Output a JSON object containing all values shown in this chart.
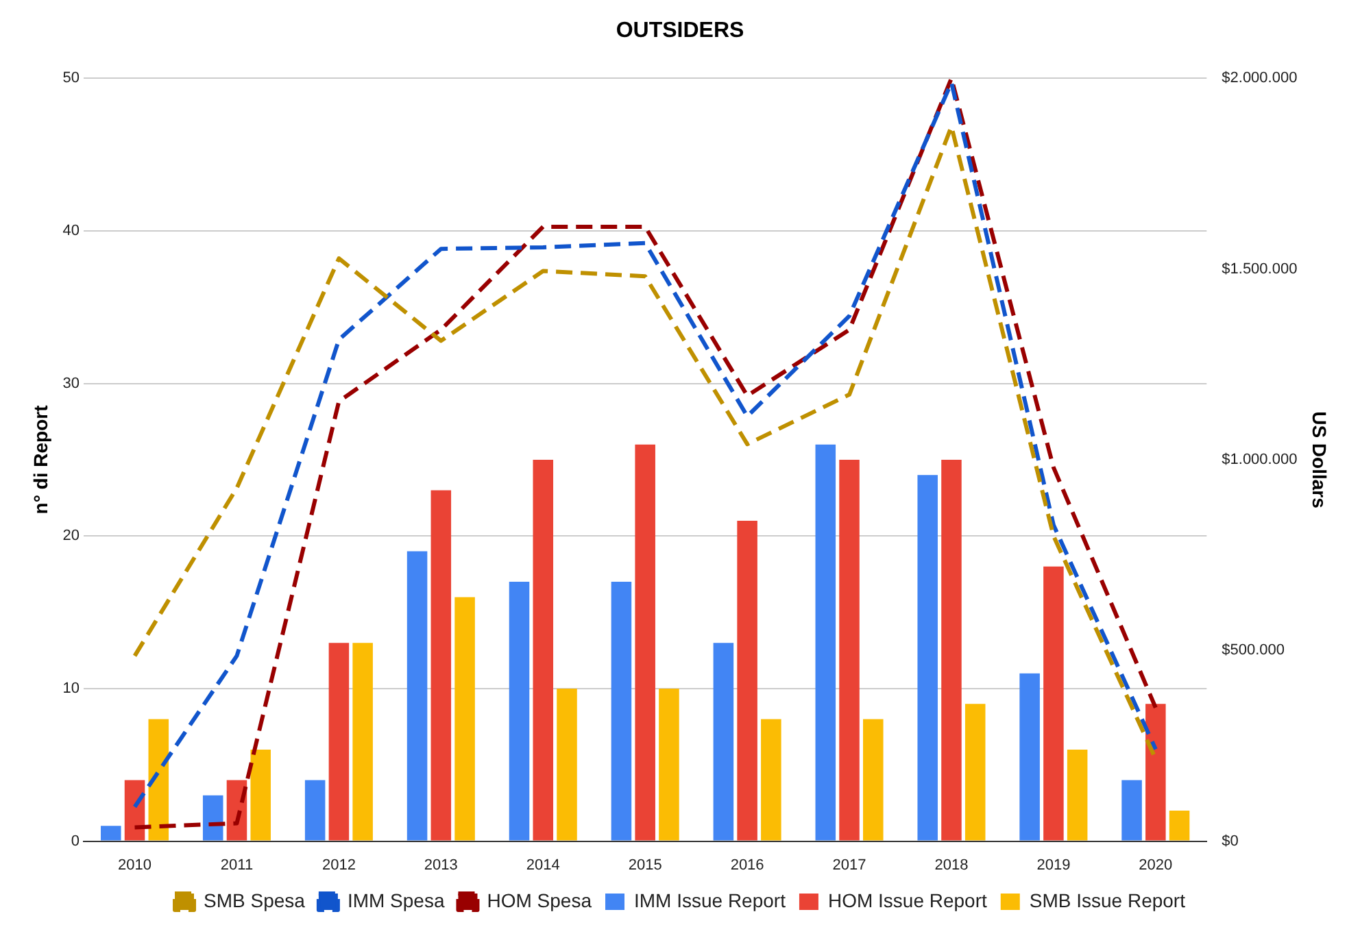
{
  "chart_data": {
    "type": "bar",
    "title": "OUTSIDERS",
    "ylabel": "n° di Report",
    "y2label": "US Dollars",
    "categories": [
      "2010",
      "2011",
      "2012",
      "2013",
      "2014",
      "2015",
      "2016",
      "2017",
      "2018",
      "2019",
      "2020"
    ],
    "series": [
      {
        "name": "IMM Issue Report",
        "color": "#4285f4",
        "values": [
          1,
          3,
          4,
          19,
          17,
          17,
          13,
          26,
          24,
          11,
          4
        ]
      },
      {
        "name": "HOM Issue Report",
        "color": "#ea4335",
        "values": [
          4,
          4,
          13,
          23,
          25,
          26,
          21,
          25,
          25,
          18,
          9
        ]
      },
      {
        "name": "SMB Issue Report",
        "color": "#fbbc04",
        "values": [
          8,
          6,
          13,
          16,
          10,
          10,
          8,
          8,
          9,
          6,
          2
        ]
      },
      {
        "name": "SMB Spesa",
        "type": "line",
        "axis": "y2",
        "line_style": "dashed",
        "color": "#bf9000",
        "values": [
          486000,
          926000,
          1528000,
          1312000,
          1495000,
          1481000,
          1041000,
          1171000,
          1874000,
          800000,
          216000
        ]
      },
      {
        "name": "IMM Spesa",
        "type": "line",
        "axis": "y2",
        "line_style": "dashed",
        "color": "#1155cc",
        "values": [
          90000,
          486000,
          1315000,
          1553000,
          1557000,
          1568000,
          1114000,
          1377000,
          1989000,
          829000,
          241000
        ]
      },
      {
        "name": "HOM Spesa",
        "type": "line",
        "axis": "y2",
        "line_style": "dashed",
        "color": "#990000",
        "values": [
          36000,
          47000,
          1153000,
          1341000,
          1611000,
          1611000,
          1168000,
          1341000,
          2000000,
          980000,
          350000
        ]
      }
    ],
    "ylim": [
      0,
      50
    ],
    "yticks": [
      0,
      10,
      20,
      30,
      40,
      50
    ],
    "y2lim": [
      0,
      2000000
    ],
    "y2ticks": [
      {
        "value": 0,
        "label": "$0"
      },
      {
        "value": 500000,
        "label": "$500.000"
      },
      {
        "value": 1000000,
        "label": "$1.000.000"
      },
      {
        "value": 1500000,
        "label": "$1.500.000"
      },
      {
        "value": 2000000,
        "label": "$2.000.000"
      }
    ],
    "grid": "y",
    "legend": "bottom",
    "marker": "none"
  }
}
